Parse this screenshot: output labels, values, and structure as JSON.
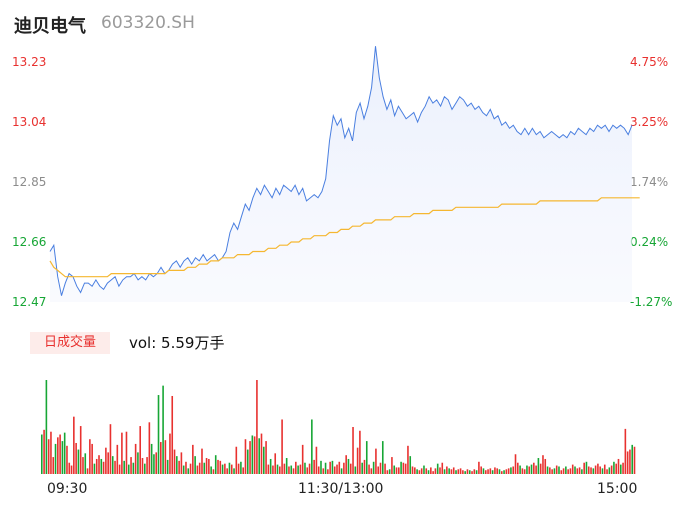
{
  "header": {
    "name": "迪贝电气",
    "code": "603320.SH"
  },
  "price_axis": [
    "13.23",
    "13.04",
    "12.85",
    "12.66",
    "12.47"
  ],
  "pct_axis": [
    "4.75%",
    "3.25%",
    "1.74%",
    "0.24%",
    "-1.27%"
  ],
  "volume": {
    "tab_label": "日成交量",
    "summary": "vol: 5.59万手"
  },
  "time_axis": [
    "09:30",
    "11:30/13:00",
    "15:00"
  ],
  "colors": {
    "up": "#e8312f",
    "down": "#17a635",
    "price_line": "#4a7fe0",
    "avg_line": "#f5b731"
  },
  "chart_data": [
    {
      "type": "line",
      "title": "",
      "series": [
        {
          "name": "",
          "values": [
            12.63,
            12.65,
            12.55,
            12.49,
            12.53,
            12.56,
            12.55,
            12.52,
            12.5,
            12.53,
            12.53,
            12.52,
            12.54,
            12.52,
            12.51,
            12.53,
            12.54,
            12.55,
            12.52,
            12.54,
            12.55,
            12.55,
            12.56,
            12.54,
            12.55,
            12.54,
            12.56,
            12.55,
            12.56,
            12.58,
            12.56,
            12.57,
            12.59,
            12.6,
            12.58,
            12.6,
            12.61,
            12.59,
            12.61,
            12.6,
            12.62,
            12.6,
            12.61,
            12.62,
            12.6,
            12.61,
            12.63,
            12.69,
            12.72,
            12.7,
            12.74,
            12.78,
            12.76,
            12.8,
            12.83,
            12.81,
            12.84,
            12.82,
            12.8,
            12.83,
            12.81,
            12.84,
            12.83,
            12.82,
            12.84,
            12.81,
            12.83,
            12.79,
            12.8,
            12.81,
            12.8,
            12.82,
            12.86,
            12.98,
            13.06,
            13.03,
            13.05,
            12.99,
            13.02,
            12.98,
            13.07,
            13.1,
            13.05,
            13.09,
            13.15,
            13.28,
            13.18,
            13.12,
            13.08,
            13.11,
            13.06,
            13.09,
            13.07,
            13.05,
            13.06,
            13.07,
            13.04,
            13.07,
            13.09,
            13.12,
            13.1,
            13.11,
            13.09,
            13.12,
            13.11,
            13.08,
            13.1,
            13.12,
            13.11,
            13.09,
            13.1,
            13.08,
            13.09,
            13.07,
            13.06,
            13.08,
            13.05,
            13.06,
            13.03,
            13.04,
            13.02,
            13.03,
            13.01,
            13.0,
            13.02,
            13.0,
            13.02,
            13.0,
            13.01,
            12.99,
            13.0,
            13.01,
            13.0,
            12.99,
            13.0,
            12.99,
            13.01,
            13.0,
            13.02,
            13.01,
            13.0,
            13.02,
            13.01,
            13.03,
            13.02,
            13.03,
            13.01,
            13.03,
            13.02,
            13.03,
            13.02,
            13.0,
            13.03
          ]
        },
        {
          "name": "",
          "values": [
            12.6,
            12.58,
            12.57,
            12.56,
            12.55,
            12.55,
            12.55,
            12.55,
            12.55,
            12.55,
            12.55,
            12.55,
            12.55,
            12.55,
            12.55,
            12.55,
            12.56,
            12.56,
            12.56,
            12.56,
            12.56,
            12.56,
            12.56,
            12.56,
            12.56,
            12.56,
            12.56,
            12.56,
            12.56,
            12.56,
            12.56,
            12.57,
            12.57,
            12.57,
            12.57,
            12.57,
            12.58,
            12.58,
            12.58,
            12.59,
            12.59,
            12.59,
            12.6,
            12.6,
            12.6,
            12.61,
            12.61,
            12.61,
            12.61,
            12.62,
            12.62,
            12.62,
            12.62,
            12.63,
            12.63,
            12.63,
            12.63,
            12.64,
            12.64,
            12.64,
            12.65,
            12.65,
            12.65,
            12.66,
            12.66,
            12.66,
            12.67,
            12.67,
            12.67,
            12.68,
            12.68,
            12.68,
            12.68,
            12.69,
            12.69,
            12.69,
            12.7,
            12.7,
            12.7,
            12.71,
            12.71,
            12.71,
            12.72,
            12.72,
            12.72,
            12.73,
            12.73,
            12.73,
            12.73,
            12.73,
            12.74,
            12.74,
            12.74,
            12.74,
            12.74,
            12.75,
            12.75,
            12.75,
            12.75,
            12.75,
            12.76,
            12.76,
            12.76,
            12.76,
            12.76,
            12.76,
            12.77,
            12.77,
            12.77,
            12.77,
            12.77,
            12.77,
            12.77,
            12.77,
            12.77,
            12.77,
            12.77,
            12.77,
            12.78,
            12.78,
            12.78,
            12.78,
            12.78,
            12.78,
            12.78,
            12.78,
            12.78,
            12.78,
            12.79,
            12.79,
            12.79,
            12.79,
            12.79,
            12.79,
            12.79,
            12.79,
            12.79,
            12.79,
            12.79,
            12.79,
            12.79,
            12.79,
            12.79,
            12.79,
            12.8,
            12.8,
            12.8,
            12.8,
            12.8,
            12.8,
            12.8,
            12.8,
            12.8,
            12.8,
            12.8
          ]
        }
      ],
      "ylim": [
        12.47,
        13.23
      ]
    },
    {
      "type": "bar",
      "title": "",
      "values": [
        0.42,
        0.47,
        1.0,
        0.37,
        0.45,
        0.18,
        0.32,
        0.39,
        0.42,
        0.35,
        0.44,
        0.3,
        0.12,
        0.09,
        0.61,
        0.33,
        0.26,
        0.51,
        0.18,
        0.22,
        0.06,
        0.37,
        0.32,
        0.11,
        0.16,
        0.2,
        0.16,
        0.13,
        0.28,
        0.23,
        0.53,
        0.19,
        0.14,
        0.31,
        0.1,
        0.44,
        0.14,
        0.45,
        0.1,
        0.18,
        0.12,
        0.32,
        0.23,
        0.51,
        0.17,
        0.11,
        0.18,
        0.55,
        0.32,
        0.21,
        0.23,
        0.84,
        0.34,
        0.94,
        0.36,
        0.15,
        0.43,
        0.83,
        0.26,
        0.19,
        0.14,
        0.23,
        0.09,
        0.13,
        0.06,
        0.11,
        0.31,
        0.19,
        0.09,
        0.12,
        0.27,
        0.12,
        0.17,
        0.16,
        0.08,
        0.05,
        0.2,
        0.15,
        0.14,
        0.1,
        0.11,
        0.06,
        0.12,
        0.1,
        0.06,
        0.29,
        0.11,
        0.13,
        0.07,
        0.37,
        0.26,
        0.35,
        0.41,
        0.4,
        1.0,
        0.38,
        0.43,
        0.29,
        0.35,
        0.1,
        0.16,
        0.09,
        0.22,
        0.1,
        0.08,
        0.58,
        0.11,
        0.17,
        0.08,
        0.09,
        0.06,
        0.13,
        0.09,
        0.1,
        0.31,
        0.12,
        0.07,
        0.11,
        0.58,
        0.15,
        0.29,
        0.08,
        0.14,
        0.06,
        0.12,
        0.05,
        0.13,
        0.14,
        0.08,
        0.1,
        0.13,
        0.06,
        0.12,
        0.2,
        0.16,
        0.11,
        0.5,
        0.08,
        0.28,
        0.46,
        0.12,
        0.15,
        0.35,
        0.1,
        0.06,
        0.13,
        0.27,
        0.08,
        0.12,
        0.35,
        0.11,
        0.04,
        0.05,
        0.18,
        0.09,
        0.07,
        0.07,
        0.13,
        0.12,
        0.11,
        0.3,
        0.19,
        0.08,
        0.07,
        0.05,
        0.04,
        0.06,
        0.09,
        0.06,
        0.04,
        0.07,
        0.03,
        0.06,
        0.11,
        0.07,
        0.12,
        0.05,
        0.08,
        0.06,
        0.05,
        0.07,
        0.04,
        0.05,
        0.06,
        0.04,
        0.03,
        0.05,
        0.04,
        0.03,
        0.05,
        0.04,
        0.13,
        0.08,
        0.06,
        0.04,
        0.05,
        0.06,
        0.04,
        0.07,
        0.06,
        0.05,
        0.03,
        0.04,
        0.05,
        0.06,
        0.07,
        0.08,
        0.21,
        0.12,
        0.09,
        0.06,
        0.05,
        0.09,
        0.08,
        0.1,
        0.12,
        0.09,
        0.17,
        0.11,
        0.2,
        0.16,
        0.08,
        0.07,
        0.05,
        0.06,
        0.09,
        0.08,
        0.04,
        0.06,
        0.08,
        0.05,
        0.06,
        0.1,
        0.08,
        0.06,
        0.07,
        0.05,
        0.12,
        0.13,
        0.08,
        0.07,
        0.06,
        0.09,
        0.11,
        0.08,
        0.06,
        0.1,
        0.05,
        0.07,
        0.09,
        0.13,
        0.11,
        0.16,
        0.1,
        0.12,
        0.48,
        0.24,
        0.26,
        0.31,
        0.29
      ],
      "colors": [
        "g",
        "r",
        "g",
        "r",
        "r",
        "r",
        "g",
        "r",
        "r",
        "g",
        "g",
        "r",
        "r",
        "r",
        "r",
        "r",
        "g",
        "r",
        "r",
        "g",
        "r",
        "r",
        "r",
        "g",
        "r",
        "r",
        "g",
        "r",
        "r",
        "r",
        "r",
        "g",
        "r",
        "r",
        "r",
        "r",
        "g",
        "r",
        "g",
        "r",
        "g",
        "r",
        "g",
        "r",
        "r",
        "g",
        "r",
        "r",
        "g",
        "g",
        "r",
        "g",
        "r",
        "g",
        "r",
        "g",
        "r",
        "r",
        "r",
        "g",
        "r",
        "r",
        "g",
        "r",
        "g",
        "r",
        "r",
        "g",
        "r",
        "r",
        "r",
        "g",
        "r",
        "r",
        "g",
        "r",
        "g",
        "r",
        "r",
        "g",
        "r",
        "r",
        "g",
        "r",
        "g",
        "r",
        "r",
        "g",
        "r",
        "r",
        "g",
        "r",
        "g",
        "r",
        "r",
        "g",
        "r",
        "g",
        "r",
        "r",
        "g",
        "r",
        "r",
        "g",
        "r",
        "r",
        "r",
        "g",
        "r",
        "g",
        "r",
        "r",
        "g",
        "r",
        "r",
        "g",
        "r",
        "r",
        "g",
        "r",
        "r",
        "r",
        "g",
        "r",
        "g",
        "r",
        "r",
        "g",
        "r",
        "r",
        "r",
        "g",
        "r",
        "r",
        "g",
        "r",
        "r",
        "g",
        "r",
        "r",
        "g",
        "r",
        "g",
        "r",
        "r",
        "g",
        "r",
        "r",
        "r",
        "g",
        "r",
        "r",
        "g",
        "r",
        "g",
        "r",
        "r",
        "g",
        "r",
        "r",
        "r",
        "g",
        "r",
        "r",
        "g",
        "r",
        "r",
        "g",
        "r",
        "g",
        "r",
        "r",
        "r",
        "g",
        "r",
        "r",
        "g",
        "r",
        "g",
        "r",
        "r",
        "g",
        "r",
        "r",
        "r",
        "g",
        "r",
        "g",
        "r",
        "r",
        "g",
        "r",
        "r",
        "g",
        "r",
        "r",
        "r",
        "g",
        "r",
        "r",
        "g",
        "r",
        "g",
        "r",
        "r",
        "g",
        "r",
        "r",
        "r",
        "g",
        "r",
        "r",
        "g",
        "r",
        "g",
        "r",
        "r",
        "g",
        "r",
        "r",
        "r",
        "g",
        "r",
        "r",
        "g",
        "r",
        "g",
        "r",
        "r",
        "g",
        "r",
        "r",
        "r",
        "g",
        "r",
        "r",
        "g",
        "r",
        "g",
        "r",
        "r",
        "g",
        "r",
        "r",
        "r",
        "g",
        "r",
        "r",
        "g",
        "r",
        "g",
        "r",
        "r",
        "g",
        "r",
        "r",
        "r",
        "r",
        "g"
      ]
    }
  ]
}
